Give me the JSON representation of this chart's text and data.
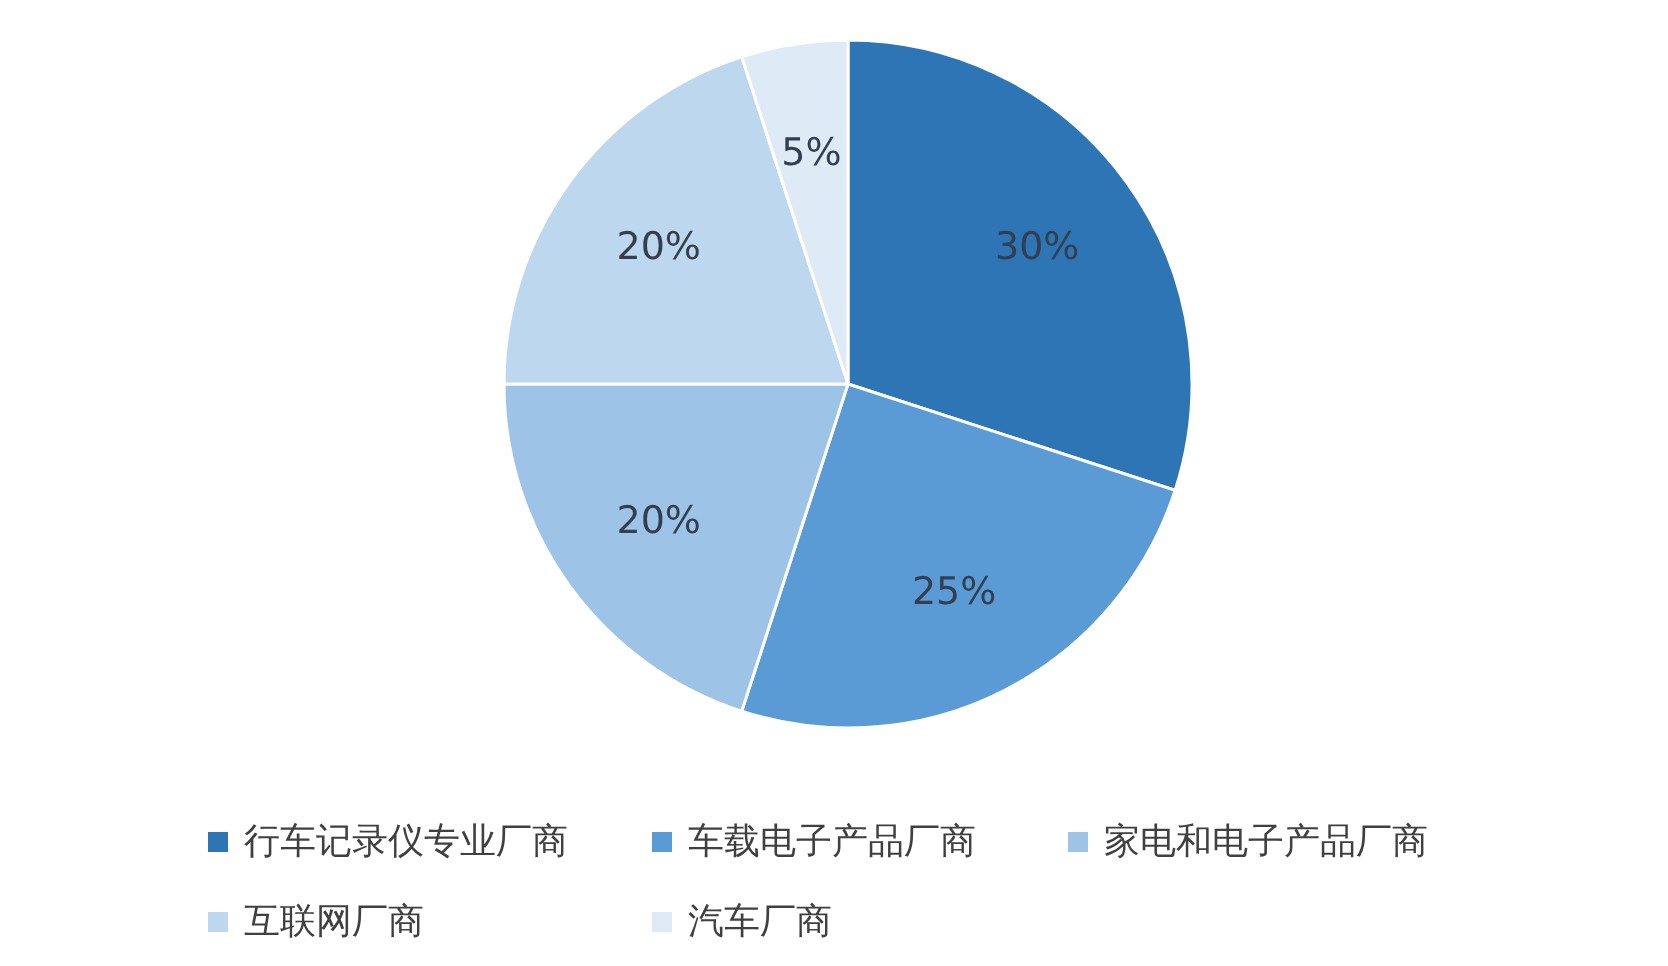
{
  "chart_data": {
    "type": "pie",
    "categories": [
      "行车记录仪专业厂商",
      "车载电子产品厂商",
      "家电和电子产品厂商",
      "互联网厂商",
      "汽车厂商"
    ],
    "values": [
      30,
      25,
      20,
      20,
      5
    ],
    "colors": [
      "#2e75b6",
      "#5b9bd5",
      "#9dc3e6",
      "#bdd7ee",
      "#deebf7"
    ],
    "value_labels": [
      "30%",
      "25%",
      "20%",
      "20%",
      "5%"
    ],
    "legend": "bottom"
  }
}
